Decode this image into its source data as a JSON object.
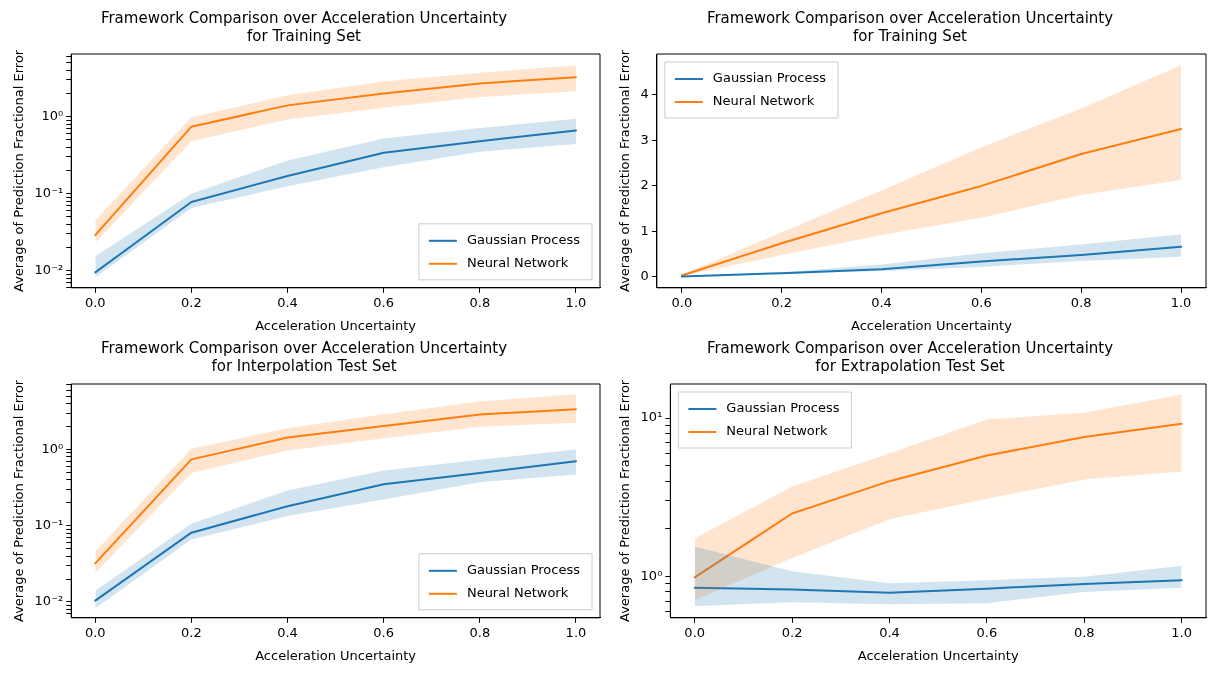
{
  "chart_data": [
    {
      "type": "line",
      "title": "Framework Comparison over Acceleration Uncertainty\nfor Training Set",
      "xlabel": "Acceleration Uncertainty",
      "ylabel": "Average of Prediction Fractional Error",
      "log": true,
      "legend": "bottom right",
      "x": [
        0,
        0.2,
        0.4,
        0.6,
        0.8,
        1.0
      ],
      "xlim": [
        -0.05,
        1.05
      ],
      "xticks": [
        {
          "value": 0,
          "label": "0.0"
        },
        {
          "value": 0.2,
          "label": "0.2"
        },
        {
          "value": 0.4,
          "label": "0.4"
        },
        {
          "value": 0.6,
          "label": "0.6"
        },
        {
          "value": 0.8,
          "label": "0.8"
        },
        {
          "value": 1,
          "label": "1.0"
        }
      ],
      "ylim": [
        0.006,
        6.5
      ],
      "yticks": [
        {
          "value": 0.006,
          "label": null
        },
        {
          "value": 0.007,
          "label": null
        },
        {
          "value": 0.008,
          "label": null
        },
        {
          "value": 0.009,
          "label": null
        },
        {
          "value": 0.01,
          "label": "10⁻²"
        },
        {
          "value": 0.02,
          "label": null
        },
        {
          "value": 0.03,
          "label": null
        },
        {
          "value": 0.04,
          "label": null
        },
        {
          "value": 0.05,
          "label": null
        },
        {
          "value": 0.06,
          "label": null
        },
        {
          "value": 0.07,
          "label": null
        },
        {
          "value": 0.08,
          "label": null
        },
        {
          "value": 0.09,
          "label": null
        },
        {
          "value": 0.1,
          "label": "10⁻¹"
        },
        {
          "value": 0.2,
          "label": null
        },
        {
          "value": 0.3,
          "label": null
        },
        {
          "value": 0.4,
          "label": null
        },
        {
          "value": 0.5,
          "label": null
        },
        {
          "value": 0.6,
          "label": null
        },
        {
          "value": 0.7,
          "label": null
        },
        {
          "value": 0.8,
          "label": null
        },
        {
          "value": 0.9,
          "label": null
        },
        {
          "value": 1,
          "label": "10⁰"
        },
        {
          "value": 2,
          "label": null
        },
        {
          "value": 3,
          "label": null
        },
        {
          "value": 4,
          "label": null
        },
        {
          "value": 5,
          "label": null
        },
        {
          "value": 6,
          "label": null
        }
      ],
      "series": [
        {
          "name": "Gaussian Process",
          "color": "#1f77b4",
          "values": [
            0.0095,
            0.078,
            0.17,
            0.34,
            0.48,
            0.66
          ],
          "lower": [
            0.0082,
            0.065,
            0.125,
            0.22,
            0.35,
            0.44
          ],
          "upper": [
            0.0154,
            0.1,
            0.27,
            0.52,
            0.71,
            0.94
          ]
        },
        {
          "name": "Neural Network",
          "color": "#ff7f0e",
          "values": [
            0.029,
            0.74,
            1.4,
            2.0,
            2.7,
            3.25
          ],
          "lower": [
            0.023,
            0.48,
            0.92,
            1.3,
            1.8,
            2.13
          ],
          "upper": [
            0.045,
            0.98,
            1.9,
            2.85,
            3.7,
            4.65
          ]
        }
      ]
    },
    {
      "type": "line",
      "title": "Framework Comparison over Acceleration Uncertainty\nfor Training Set",
      "xlabel": "Acceleration Uncertainty",
      "ylabel": "Average of Prediction Fractional Error",
      "legend": "top left",
      "x": [
        0,
        0.2,
        0.4,
        0.6,
        0.8,
        1.0
      ],
      "xlim": [
        -0.05,
        1.05
      ],
      "xticks": [
        {
          "value": 0,
          "label": "0.0"
        },
        {
          "value": 0.2,
          "label": "0.2"
        },
        {
          "value": 0.4,
          "label": "0.4"
        },
        {
          "value": 0.6,
          "label": "0.6"
        },
        {
          "value": 0.8,
          "label": "0.8"
        },
        {
          "value": 1,
          "label": "1.0"
        }
      ],
      "ylim": [
        -0.24,
        4.9
      ],
      "yticks": [
        0,
        1,
        2,
        3,
        4
      ],
      "series": [
        {
          "name": "Gaussian Process",
          "color": "#1f77b4",
          "values": [
            0.01,
            0.08,
            0.17,
            0.34,
            0.48,
            0.66
          ],
          "lower": [
            0.01,
            0.07,
            0.13,
            0.22,
            0.35,
            0.44
          ],
          "upper": [
            0.02,
            0.1,
            0.27,
            0.52,
            0.71,
            0.94
          ]
        },
        {
          "name": "Neural Network",
          "color": "#ff7f0e",
          "values": [
            0.03,
            0.74,
            1.4,
            2.0,
            2.7,
            3.25
          ],
          "lower": [
            0.02,
            0.48,
            0.92,
            1.3,
            1.8,
            2.13
          ],
          "upper": [
            0.05,
            0.98,
            1.9,
            2.85,
            3.7,
            4.65
          ]
        }
      ]
    },
    {
      "type": "line",
      "title": "Framework Comparison over Acceleration Uncertainty\nfor Interpolation Test Set",
      "xlabel": "Acceleration Uncertainty",
      "ylabel": "Average of Prediction Fractional Error",
      "log": true,
      "legend": "bottom right",
      "x": [
        0,
        0.2,
        0.4,
        0.6,
        0.8,
        1.0
      ],
      "xlim": [
        -0.05,
        1.05
      ],
      "xticks": [
        {
          "value": 0,
          "label": "0.0"
        },
        {
          "value": 0.2,
          "label": "0.2"
        },
        {
          "value": 0.4,
          "label": "0.4"
        },
        {
          "value": 0.6,
          "label": "0.6"
        },
        {
          "value": 0.8,
          "label": "0.8"
        },
        {
          "value": 1,
          "label": "1.0"
        }
      ],
      "ylim": [
        0.0062,
        7.2
      ],
      "yticks": [
        {
          "value": 0.007,
          "label": null
        },
        {
          "value": 0.008,
          "label": null
        },
        {
          "value": 0.009,
          "label": null
        },
        {
          "value": 0.01,
          "label": "10⁻²"
        },
        {
          "value": 0.02,
          "label": null
        },
        {
          "value": 0.03,
          "label": null
        },
        {
          "value": 0.04,
          "label": null
        },
        {
          "value": 0.05,
          "label": null
        },
        {
          "value": 0.06,
          "label": null
        },
        {
          "value": 0.07,
          "label": null
        },
        {
          "value": 0.08,
          "label": null
        },
        {
          "value": 0.09,
          "label": null
        },
        {
          "value": 0.1,
          "label": "10⁻¹"
        },
        {
          "value": 0.2,
          "label": null
        },
        {
          "value": 0.3,
          "label": null
        },
        {
          "value": 0.4,
          "label": null
        },
        {
          "value": 0.5,
          "label": null
        },
        {
          "value": 0.6,
          "label": null
        },
        {
          "value": 0.7,
          "label": null
        },
        {
          "value": 0.8,
          "label": null
        },
        {
          "value": 0.9,
          "label": null
        },
        {
          "value": 1,
          "label": "10⁰"
        },
        {
          "value": 2,
          "label": null
        },
        {
          "value": 3,
          "label": null
        },
        {
          "value": 4,
          "label": null
        },
        {
          "value": 5,
          "label": null
        },
        {
          "value": 6,
          "label": null
        },
        {
          "value": 7,
          "label": null
        }
      ],
      "series": [
        {
          "name": "Gaussian Process",
          "color": "#1f77b4",
          "values": [
            0.0104,
            0.081,
            0.18,
            0.35,
            0.49,
            0.7
          ],
          "lower": [
            0.0083,
            0.066,
            0.134,
            0.22,
            0.37,
            0.47
          ],
          "upper": [
            0.014,
            0.106,
            0.29,
            0.53,
            0.73,
            1.0
          ]
        },
        {
          "name": "Neural Network",
          "color": "#ff7f0e",
          "values": [
            0.032,
            0.74,
            1.43,
            2.03,
            2.87,
            3.36
          ],
          "lower": [
            0.024,
            0.49,
            0.97,
            1.4,
            1.98,
            2.24
          ],
          "upper": [
            0.046,
            1.02,
            1.9,
            2.9,
            4.25,
            5.3
          ]
        }
      ]
    },
    {
      "type": "line",
      "title": "Framework Comparison over Acceleration Uncertainty\nfor Extrapolation Test Set",
      "xlabel": "Acceleration Uncertainty",
      "ylabel": "Average of Prediction Fractional Error",
      "log": true,
      "legend": "top left",
      "x": [
        0,
        0.2,
        0.4,
        0.6,
        0.8,
        1.0
      ],
      "xlim": [
        -0.05,
        1.05
      ],
      "xticks": [
        {
          "value": 0,
          "label": "0.0"
        },
        {
          "value": 0.2,
          "label": "0.2"
        },
        {
          "value": 0.4,
          "label": "0.4"
        },
        {
          "value": 0.6,
          "label": "0.6"
        },
        {
          "value": 0.8,
          "label": "0.8"
        },
        {
          "value": 1,
          "label": "1.0"
        }
      ],
      "ylim": [
        0.55,
        16.4
      ],
      "yticks": [
        {
          "value": 0.6,
          "label": null
        },
        {
          "value": 0.7,
          "label": null
        },
        {
          "value": 0.8,
          "label": null
        },
        {
          "value": 0.9,
          "label": null
        },
        {
          "value": 1,
          "label": "10⁰"
        },
        {
          "value": 2,
          "label": null
        },
        {
          "value": 3,
          "label": null
        },
        {
          "value": 4,
          "label": null
        },
        {
          "value": 5,
          "label": null
        },
        {
          "value": 6,
          "label": null
        },
        {
          "value": 7,
          "label": null
        },
        {
          "value": 8,
          "label": null
        },
        {
          "value": 9,
          "label": null
        },
        {
          "value": 10,
          "label": "10¹"
        }
      ],
      "series": [
        {
          "name": "Gaussian Process",
          "color": "#1f77b4",
          "values": [
            0.85,
            0.83,
            0.79,
            0.84,
            0.9,
            0.95
          ],
          "lower": [
            0.65,
            0.69,
            0.67,
            0.68,
            0.8,
            0.85
          ],
          "upper": [
            1.55,
            1.08,
            0.91,
            0.95,
            1.0,
            1.17
          ]
        },
        {
          "name": "Neural Network",
          "color": "#ff7f0e",
          "values": [
            0.99,
            2.5,
            4.0,
            5.8,
            7.6,
            9.2
          ],
          "lower": [
            0.71,
            1.31,
            2.3,
            3.1,
            4.1,
            4.6
          ],
          "upper": [
            1.74,
            3.7,
            6.0,
            9.8,
            10.8,
            14.1
          ]
        }
      ]
    }
  ]
}
